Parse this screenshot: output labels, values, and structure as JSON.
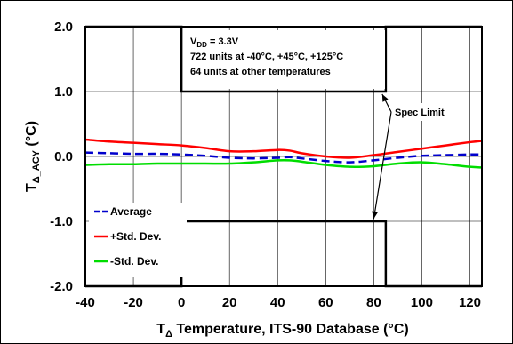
{
  "chart_data": {
    "type": "line",
    "xlabel_main": "T",
    "xlabel_sub": "Δ",
    "xlabel_rest": " Temperature, ITS-90 Database (°C)",
    "ylabel_main": "T",
    "ylabel_sub": "Δ_ACY",
    "ylabel_rest": " (°C)",
    "xlim": [
      -40,
      125
    ],
    "ylim": [
      -2.0,
      2.0
    ],
    "x_ticks": [
      -40,
      -20,
      0,
      20,
      40,
      60,
      80,
      100,
      120
    ],
    "x_tick_labels": [
      "-40",
      "-20",
      "0",
      "20",
      "40",
      "60",
      "80",
      "100",
      "120"
    ],
    "y_ticks": [
      2.0,
      1.0,
      0.0,
      -1.0,
      -2.0
    ],
    "y_tick_labels": [
      "2.0",
      "1.0",
      "0.0",
      "-1.0",
      "-2.0"
    ],
    "grid": true,
    "annotation": {
      "vdd_main": "V",
      "vdd_sub": "DD",
      "vdd_rest": " = 3.3V",
      "line2": "722 units at -40°C, +45°C, +125°C",
      "line3": "64 units at other temperatures"
    },
    "spec_label": "Spec Limit",
    "spec_limit_upper": {
      "x": [
        -40,
        0,
        0,
        85,
        85,
        125
      ],
      "y": [
        2.0,
        2.0,
        1.0,
        1.0,
        2.0,
        2.0
      ]
    },
    "spec_limit_lower": {
      "x": [
        -40,
        0,
        0,
        85,
        85,
        125
      ],
      "y": [
        -2.0,
        -2.0,
        -1.0,
        -1.0,
        -2.0,
        -2.0
      ]
    },
    "legend_position": "bottom-left",
    "series": [
      {
        "name": "Average",
        "color": "#0000cc",
        "dash": true,
        "x": [
          -40,
          -30,
          -20,
          -10,
          0,
          10,
          20,
          30,
          40,
          45,
          50,
          60,
          70,
          80,
          90,
          100,
          110,
          120,
          125
        ],
        "y": [
          0.06,
          0.05,
          0.04,
          0.04,
          0.03,
          0.01,
          -0.02,
          -0.03,
          -0.02,
          -0.01,
          -0.03,
          -0.07,
          -0.09,
          -0.06,
          -0.02,
          0.01,
          0.02,
          0.03,
          0.03
        ]
      },
      {
        "name": "+Std. Dev.",
        "color": "#ff0000",
        "dash": false,
        "x": [
          -40,
          -30,
          -20,
          -10,
          0,
          10,
          20,
          30,
          40,
          45,
          50,
          60,
          70,
          80,
          90,
          100,
          110,
          120,
          125
        ],
        "y": [
          0.26,
          0.23,
          0.21,
          0.19,
          0.17,
          0.13,
          0.08,
          0.08,
          0.1,
          0.09,
          0.05,
          0.0,
          -0.02,
          0.02,
          0.07,
          0.12,
          0.17,
          0.22,
          0.24
        ]
      },
      {
        "name": "-Std. Dev.",
        "color": "#00dd00",
        "dash": false,
        "x": [
          -40,
          -30,
          -20,
          -10,
          0,
          10,
          20,
          30,
          40,
          45,
          50,
          60,
          70,
          80,
          90,
          100,
          110,
          120,
          125
        ],
        "y": [
          -0.13,
          -0.12,
          -0.12,
          -0.11,
          -0.11,
          -0.11,
          -0.11,
          -0.09,
          -0.06,
          -0.06,
          -0.08,
          -0.13,
          -0.16,
          -0.15,
          -0.11,
          -0.09,
          -0.12,
          -0.16,
          -0.17
        ]
      }
    ]
  }
}
